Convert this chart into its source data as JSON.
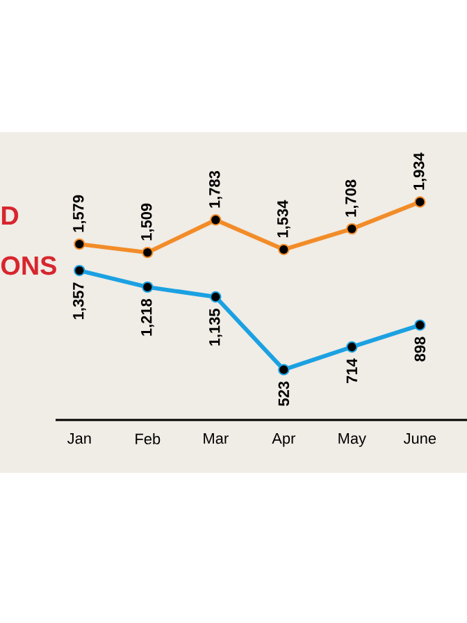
{
  "chart_data": {
    "type": "line",
    "categories": [
      "Jan",
      "Feb",
      "Mar",
      "Apr",
      "May",
      "June"
    ],
    "series": [
      {
        "color": "#f28c28",
        "values": [
          1579,
          1509,
          1783,
          1534,
          1708,
          1934
        ],
        "value_labels": [
          "1,579",
          "1,509",
          "1,783",
          "1,534",
          "1,708",
          "1,934"
        ]
      },
      {
        "color": "#1ba1e2",
        "values": [
          1357,
          1218,
          1135,
          523,
          714,
          898
        ],
        "value_labels": [
          "1,357",
          "1,218",
          "1,135",
          "523",
          "714",
          "898"
        ]
      }
    ],
    "marker": "circle",
    "line_style": "solid",
    "grid": false,
    "annotations": [
      "D",
      "ONS"
    ]
  }
}
